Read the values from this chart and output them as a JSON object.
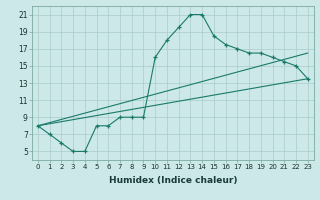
{
  "background_color": "#cce8e8",
  "grid_color": "#aacccc",
  "line_color": "#1a7a6a",
  "xlabel": "Humidex (Indice chaleur)",
  "xlim": [
    -0.5,
    23.5
  ],
  "ylim": [
    4.0,
    22.0
  ],
  "yticks": [
    5,
    7,
    9,
    11,
    13,
    15,
    17,
    19,
    21
  ],
  "xticks": [
    0,
    1,
    2,
    3,
    4,
    5,
    6,
    7,
    8,
    9,
    10,
    11,
    12,
    13,
    14,
    15,
    16,
    17,
    18,
    19,
    20,
    21,
    22,
    23
  ],
  "curve1_x": [
    0,
    1,
    2,
    3,
    4,
    5,
    6,
    7,
    8,
    9,
    10,
    11,
    12,
    13,
    14,
    15,
    16,
    17,
    18,
    19,
    20,
    21,
    22,
    23
  ],
  "curve1_y": [
    8,
    7,
    6,
    5,
    5,
    8,
    8,
    9,
    9,
    9,
    16,
    18,
    19.5,
    21,
    21,
    18.5,
    17.5,
    17,
    16.5,
    16.5,
    16,
    15.5,
    15,
    13.5
  ],
  "line1_x": [
    0,
    23
  ],
  "line1_y": [
    8,
    16.5
  ],
  "line2_x": [
    0,
    23
  ],
  "line2_y": [
    8,
    13.5
  ],
  "xlabel_fontsize": 6.5,
  "tick_fontsize_x": 5.0,
  "tick_fontsize_y": 5.5
}
